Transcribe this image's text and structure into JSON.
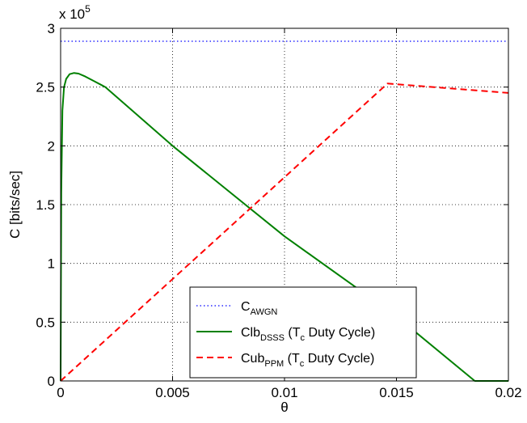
{
  "chart_data": {
    "type": "line",
    "title": "",
    "xlabel": "θ",
    "ylabel": "C [bits/sec]",
    "y_multiplier": "x 10",
    "y_multiplier_exp": "5",
    "xlim": [
      0,
      0.02
    ],
    "ylim": [
      0,
      3
    ],
    "grid": true,
    "legend_position": "bottom-center",
    "x_ticks": [
      "0",
      "0.005",
      "0.01",
      "0.015",
      "0.02"
    ],
    "x_tick_values": [
      0,
      0.005,
      0.01,
      0.015,
      0.02
    ],
    "y_ticks": [
      "0",
      "0.5",
      "1",
      "1.5",
      "2",
      "2.5",
      "3"
    ],
    "y_tick_values": [
      0,
      0.5,
      1,
      1.5,
      2,
      2.5,
      3
    ],
    "series": [
      {
        "name": "C_AWGN",
        "legend_main": "C",
        "legend_sub": "AWGN",
        "legend_rest": "",
        "style": "dotted",
        "color": "#0000ff",
        "x": [
          0,
          0.02
        ],
        "y": [
          2.89,
          2.89
        ]
      },
      {
        "name": "Clb_DSSS (T_c Duty Cycle)",
        "legend_main": "Clb",
        "legend_sub": "DSSS",
        "legend_rest": " (T",
        "legend_sub2": "c",
        "legend_tail": " Duty Cycle)",
        "style": "solid",
        "color": "#008000",
        "x": [
          0,
          3e-05,
          8e-05,
          0.00015,
          0.00025,
          0.0004,
          0.0006,
          0.0008,
          0.0011,
          0.0015,
          0.002,
          0.005,
          0.01,
          0.015,
          0.0185,
          0.02
        ],
        "y": [
          0,
          1.6,
          2.3,
          2.5,
          2.57,
          2.61,
          2.62,
          2.615,
          2.59,
          2.55,
          2.5,
          2.0,
          1.23,
          0.55,
          0,
          0
        ]
      },
      {
        "name": "Cub_PPM (T_c Duty Cycle)",
        "legend_main": "Cub",
        "legend_sub": "PPM",
        "legend_rest": " (T",
        "legend_sub2": "c",
        "legend_tail": " Duty Cycle)",
        "style": "dashed",
        "color": "#ff0000",
        "x": [
          0,
          0.0146,
          0.02
        ],
        "y": [
          0,
          2.53,
          2.45
        ]
      }
    ]
  }
}
